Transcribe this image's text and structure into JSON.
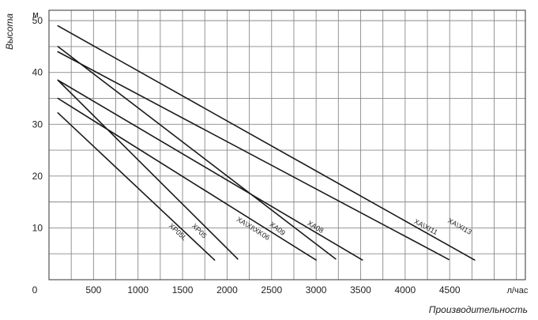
{
  "chart_data": {
    "type": "line",
    "ylabel": "Высота",
    "xlabel": "Производительность",
    "y_unit": "м",
    "x_unit": "л/час",
    "origin_label": "0",
    "xlim": [
      0,
      5350
    ],
    "ylim": [
      0,
      52
    ],
    "x_grid_step": 250,
    "y_grid_step": 5,
    "grid": true,
    "colors": {
      "line": "#1a1a1a",
      "grid": "#8a8a8a",
      "frame": "#333333"
    },
    "x_ticks": [
      {
        "value": 500,
        "label": "500"
      },
      {
        "value": 1000,
        "label": "1000"
      },
      {
        "value": 1500,
        "label": "1500"
      },
      {
        "value": 2000,
        "label": "2000"
      },
      {
        "value": 2500,
        "label": "2500"
      },
      {
        "value": 3000,
        "label": "3000"
      },
      {
        "value": 3500,
        "label": "3500"
      },
      {
        "value": 4000,
        "label": "4000"
      },
      {
        "value": 4500,
        "label": "4500"
      }
    ],
    "y_ticks": [
      {
        "value": 10,
        "label": "10"
      },
      {
        "value": 20,
        "label": "20"
      },
      {
        "value": 30,
        "label": "30"
      },
      {
        "value": 40,
        "label": "40"
      },
      {
        "value": 50,
        "label": "50"
      }
    ],
    "series": [
      {
        "name": "XP05L",
        "points": [
          [
            100,
            32.2
          ],
          [
            1860,
            3.8
          ]
        ],
        "label_at": [
          1430,
          8.9
        ]
      },
      {
        "name": "XP05",
        "points": [
          [
            100,
            38.5
          ],
          [
            2120,
            4.0
          ]
        ],
        "label_at": [
          1670,
          9.1
        ]
      },
      {
        "name": "XA\\XI\\XK06",
        "points": [
          [
            100,
            35.0
          ],
          [
            3000,
            3.8
          ]
        ],
        "label_at": [
          2280,
          9.5
        ]
      },
      {
        "name": "XA09",
        "points": [
          [
            100,
            45.0
          ],
          [
            3220,
            4.0
          ]
        ],
        "label_at": [
          2550,
          9.5
        ]
      },
      {
        "name": "XA08",
        "points": [
          [
            100,
            38.5
          ],
          [
            3520,
            3.8
          ]
        ],
        "label_at": [
          2980,
          9.8
        ]
      },
      {
        "name": "XA\\XI11",
        "points": [
          [
            100,
            44.0
          ],
          [
            4490,
            3.9
          ]
        ],
        "label_at": [
          4220,
          9.8
        ]
      },
      {
        "name": "XA\\XI13",
        "points": [
          [
            100,
            49.0
          ],
          [
            4780,
            3.8
          ]
        ],
        "label_at": [
          4600,
          9.9
        ]
      }
    ]
  }
}
